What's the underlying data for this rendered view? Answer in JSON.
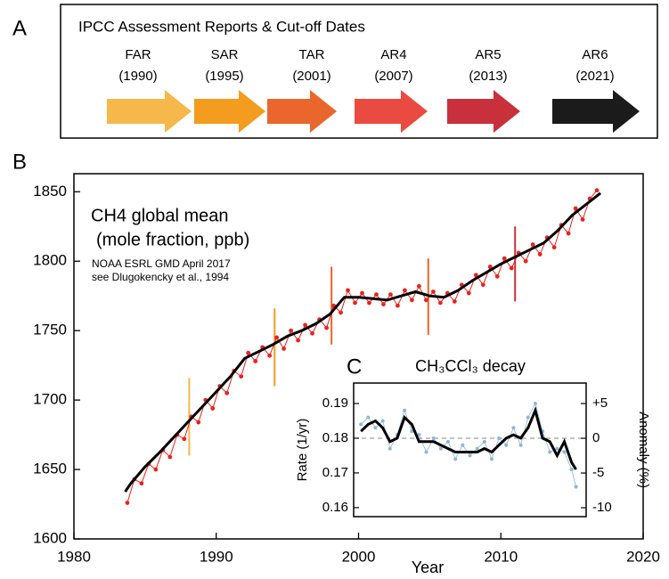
{
  "chart_data": [
    {
      "type": "timeline",
      "panel": "A",
      "title": "IPCC Assessment Reports & Cut-off Dates",
      "reports": [
        {
          "name": "FAR",
          "label": "(1990)",
          "color": "#f7b84b"
        },
        {
          "name": "SAR",
          "label": "(1995)",
          "color": "#f39c1f"
        },
        {
          "name": "TAR",
          "label": "(2001)",
          "color": "#e9662c"
        },
        {
          "name": "AR4",
          "label": "(2007)",
          "color": "#e94b40"
        },
        {
          "name": "AR5",
          "label": "(2013)",
          "color": "#c8303b"
        },
        {
          "name": "AR6",
          "label": "(2021)",
          "color": "#1b1b1b"
        }
      ]
    },
    {
      "type": "line",
      "panel": "B",
      "xlabel": "Year",
      "annotations": [
        "CH4 global mean",
        "(mole fraction, ppb)",
        "NOAA ESRL GMD April 2017",
        "see Dlugokencky et al., 1994"
      ],
      "xlim": [
        1980,
        2020
      ],
      "xticks": [
        1980,
        1990,
        2000,
        2010,
        2020
      ],
      "ylim": [
        1600,
        1863
      ],
      "yticks": [
        1600,
        1650,
        1700,
        1750,
        1800,
        1850
      ],
      "series": [
        {
          "style": "points",
          "color": "#e8231f",
          "x": [
            1983.75,
            1984.25,
            1984.75,
            1985.25,
            1985.75,
            1986.25,
            1986.75,
            1987.25,
            1987.75,
            1988.25,
            1988.75,
            1989.25,
            1989.75,
            1990.25,
            1990.75,
            1991.25,
            1991.75,
            1992.25,
            1992.75,
            1993.25,
            1993.75,
            1994.25,
            1994.75,
            1995.25,
            1995.75,
            1996.25,
            1996.75,
            1997.25,
            1997.75,
            1998.25,
            1998.75,
            1999.25,
            1999.75,
            2000.25,
            2000.75,
            2001.25,
            2001.75,
            2002.25,
            2002.75,
            2003.25,
            2003.75,
            2004.25,
            2004.75,
            2005.25,
            2005.75,
            2006.25,
            2006.75,
            2007.25,
            2007.75,
            2008.25,
            2008.75,
            2009.25,
            2009.75,
            2010.25,
            2010.75,
            2011.25,
            2011.75,
            2012.25,
            2012.75,
            2013.25,
            2013.75,
            2014.25,
            2014.75,
            2015.25,
            2015.75,
            2016.25,
            2016.75
          ],
          "values": [
            1626,
            1643,
            1640,
            1654,
            1650,
            1664,
            1659,
            1675,
            1672,
            1688,
            1684,
            1700,
            1694,
            1710,
            1705,
            1721,
            1717,
            1734,
            1728,
            1738,
            1732,
            1745,
            1737,
            1750,
            1743,
            1754,
            1748,
            1758,
            1752,
            1768,
            1763,
            1779,
            1770,
            1777,
            1770,
            1776,
            1769,
            1776,
            1768,
            1779,
            1772,
            1782,
            1772,
            1778,
            1770,
            1777,
            1771,
            1783,
            1777,
            1790,
            1783,
            1796,
            1789,
            1802,
            1795,
            1806,
            1800,
            1812,
            1805,
            1817,
            1810,
            1826,
            1820,
            1838,
            1830,
            1845,
            1851
          ]
        },
        {
          "style": "line",
          "color": "#000000",
          "x": [
            1983.6,
            1984,
            1985,
            1986,
            1987,
            1988,
            1989,
            1990,
            1991,
            1992,
            1993,
            1994,
            1995,
            1996,
            1997,
            1998,
            1999,
            2000,
            2001,
            2002,
            2003,
            2004,
            2005,
            2006,
            2007,
            2008,
            2009,
            2010,
            2011,
            2012,
            2013,
            2014,
            2015,
            2016,
            2017
          ],
          "values": [
            1634,
            1640,
            1652,
            1662,
            1673,
            1684,
            1695,
            1706,
            1717,
            1730,
            1735,
            1740,
            1746,
            1750,
            1755,
            1762,
            1774,
            1774,
            1773,
            1772,
            1775,
            1778,
            1775,
            1774,
            1779,
            1786,
            1792,
            1798,
            1803,
            1808,
            1813,
            1822,
            1833,
            1841,
            1849
          ]
        }
      ],
      "cutoffs": [
        {
          "x": 1988.1,
          "values": [
            1660,
            1716
          ],
          "color": "#f7b84b"
        },
        {
          "x": 1994.1,
          "values": [
            1710,
            1766
          ],
          "color": "#f39c1f"
        },
        {
          "x": 1998.1,
          "values": [
            1740,
            1796
          ],
          "color": "#e9662c"
        },
        {
          "x": 2004.9,
          "values": [
            1747,
            1802
          ],
          "color": "#e9662c"
        },
        {
          "x": 2011.0,
          "values": [
            1771,
            1825
          ],
          "color": "#c8303b"
        }
      ]
    },
    {
      "type": "inset",
      "panel": "C",
      "title": "CH₃CCl₃ decay",
      "ylabel": "Rate (1/yr)",
      "y2label": "Anomaly (%)",
      "xlim": [
        2000,
        2016
      ],
      "ylim": [
        0.1574,
        0.1959
      ],
      "yticks": [
        0.16,
        0.17,
        0.18,
        0.19
      ],
      "y2lim": [
        -11.28,
        7.95
      ],
      "y2ticks": [
        {
          "value": 5,
          "label": "+5"
        },
        0,
        -5,
        -10
      ],
      "series": [
        {
          "style": "points",
          "color": "#8fb4d9",
          "x": [
            2000.5,
            2001,
            2001.5,
            2002,
            2002.5,
            2003,
            2003.5,
            2004,
            2004.5,
            2005,
            2005.5,
            2006,
            2006.5,
            2007,
            2007.5,
            2008,
            2008.5,
            2009,
            2009.5,
            2010,
            2010.5,
            2011,
            2011.5,
            2012,
            2012.5,
            2013,
            2013.5,
            2014,
            2014.5,
            2015,
            2015.3
          ],
          "values": [
            0.184,
            0.186,
            0.183,
            0.185,
            0.177,
            0.181,
            0.188,
            0.182,
            0.181,
            0.176,
            0.18,
            0.177,
            0.179,
            0.174,
            0.178,
            0.175,
            0.177,
            0.179,
            0.174,
            0.18,
            0.178,
            0.183,
            0.178,
            0.186,
            0.19,
            0.182,
            0.176,
            0.177,
            0.176,
            0.171,
            0.166
          ]
        },
        {
          "style": "line",
          "color": "#000000",
          "x": [
            2000.5,
            2001,
            2001.5,
            2002,
            2002.5,
            2003,
            2003.5,
            2004,
            2004.5,
            2005,
            2005.5,
            2006,
            2006.5,
            2007,
            2007.5,
            2008,
            2008.5,
            2009,
            2009.5,
            2010,
            2010.5,
            2011,
            2011.5,
            2012,
            2012.5,
            2013,
            2013.5,
            2014,
            2014.5,
            2015,
            2015.3
          ],
          "values": [
            0.182,
            0.184,
            0.185,
            0.183,
            0.179,
            0.18,
            0.186,
            0.184,
            0.179,
            0.179,
            0.179,
            0.178,
            0.177,
            0.176,
            0.176,
            0.176,
            0.176,
            0.177,
            0.176,
            0.178,
            0.18,
            0.181,
            0.18,
            0.183,
            0.188,
            0.18,
            0.179,
            0.175,
            0.179,
            0.173,
            0.171
          ]
        }
      ],
      "zero_line": 0
    }
  ]
}
